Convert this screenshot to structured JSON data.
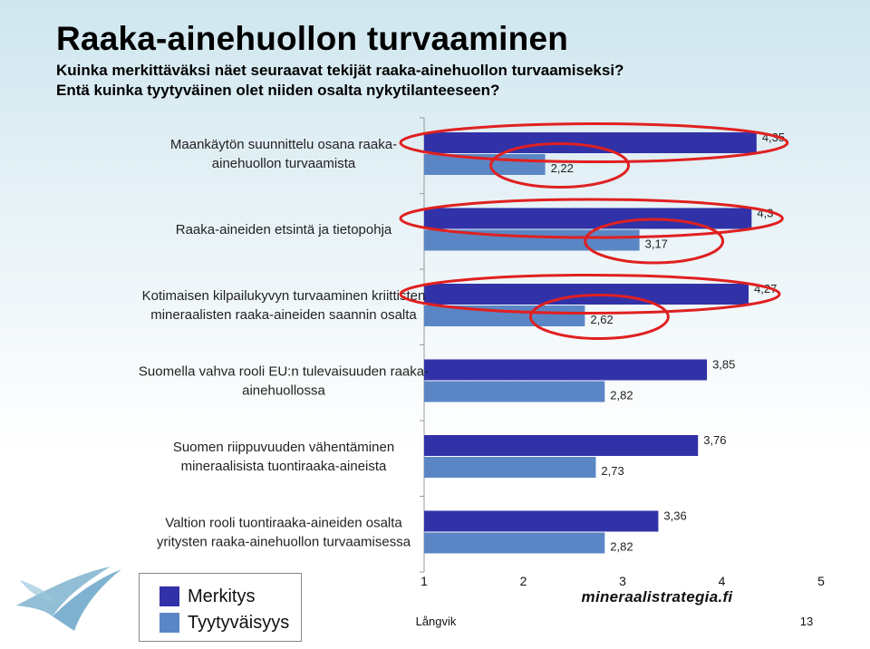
{
  "title": "Raaka-ainehuollon turvaaminen",
  "subtitle_line1": "Kuinka merkittäväksi näet seuraavat tekijät raaka-ainehuollon turvaamiseksi?",
  "subtitle_line2": "Entä kuinka tyytyväinen olet niiden osalta nykytilanteeseen?",
  "colors": {
    "merkitys": "#3232a8",
    "tyytyvaisyys": "#5b86c5",
    "highlight": "#e02020"
  },
  "chart_data": {
    "type": "bar",
    "orientation": "horizontal",
    "categories": [
      [
        "Maankäytön suunnittelu osana raaka-",
        "ainehuollon turvaamista"
      ],
      [
        "Raaka-aineiden etsintä ja tietopohja"
      ],
      [
        "Kotimaisen kilpailukyvyn turvaaminen kriittisten",
        "mineraalisten raaka-aineiden saannin osalta"
      ],
      [
        "Suomella vahva rooli EU:n tulevaisuuden raaka-",
        "ainehuollossa"
      ],
      [
        "Suomen riippuvuuden vähentäminen",
        "mineraalisista tuontiraaka-aineista"
      ],
      [
        "Valtion rooli tuontiraaka-aineiden osalta",
        "yritysten raaka-ainehuollon turvaamisessa"
      ]
    ],
    "series": [
      {
        "name": "Merkitys",
        "values": [
          4.35,
          4.3,
          4.27,
          3.85,
          3.76,
          3.36
        ]
      },
      {
        "name": "Tyytyväisyys",
        "values": [
          2.22,
          3.17,
          2.62,
          2.82,
          2.73,
          2.82
        ]
      }
    ],
    "value_labels": [
      [
        "4,35",
        "4,3",
        "4,27",
        "3,85",
        "3,76",
        "3,36"
      ],
      [
        "2,22",
        "3,17",
        "2,62",
        "2,82",
        "2,73",
        "2,82"
      ]
    ],
    "xlim": [
      1,
      5
    ],
    "xticks": [
      "1",
      "2",
      "3",
      "4",
      "5"
    ],
    "highlighted_categories": [
      0,
      1,
      2
    ],
    "legend_position": "bottom-left",
    "grid": false
  },
  "legend": {
    "merkitys": "Merkitys",
    "tyytyvaisyys": "Tyytyväisyys"
  },
  "footer": {
    "brand": "mineraalistrategia.fi",
    "author": "Långvik",
    "page_number": "13"
  }
}
